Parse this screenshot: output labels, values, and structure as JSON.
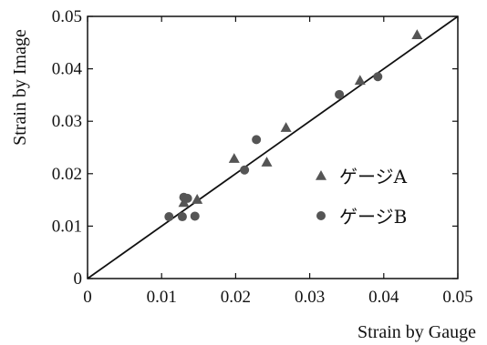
{
  "chart_data": {
    "type": "scatter",
    "xlabel": "Strain by Gauge",
    "ylabel": "Strain by Image",
    "xlim": [
      0,
      0.05
    ],
    "ylim": [
      0,
      0.05
    ],
    "xticks": [
      "0",
      "0.01",
      "0.02",
      "0.03",
      "0.04",
      "0.05"
    ],
    "yticks": [
      "0",
      "0.01",
      "0.02",
      "0.03",
      "0.04",
      "0.05"
    ],
    "grid": false,
    "legend_position": "right",
    "reference_line": {
      "from": [
        0,
        0
      ],
      "to": [
        0.05,
        0.05
      ]
    },
    "series": [
      {
        "name": "ゲージA",
        "marker": "triangle",
        "color": "#555555",
        "points": [
          [
            0.013,
            0.0145
          ],
          [
            0.0148,
            0.0151
          ],
          [
            0.0198,
            0.0229
          ],
          [
            0.0242,
            0.0222
          ],
          [
            0.0268,
            0.0288
          ],
          [
            0.0368,
            0.0378
          ],
          [
            0.0445,
            0.0465
          ]
        ]
      },
      {
        "name": "ゲージB",
        "marker": "circle",
        "color": "#555555",
        "points": [
          [
            0.011,
            0.0118
          ],
          [
            0.0128,
            0.0118
          ],
          [
            0.0145,
            0.0119
          ],
          [
            0.013,
            0.0155
          ],
          [
            0.0135,
            0.0153
          ],
          [
            0.0212,
            0.0207
          ],
          [
            0.0228,
            0.0265
          ],
          [
            0.034,
            0.0351
          ],
          [
            0.0392,
            0.0385
          ]
        ]
      }
    ]
  }
}
